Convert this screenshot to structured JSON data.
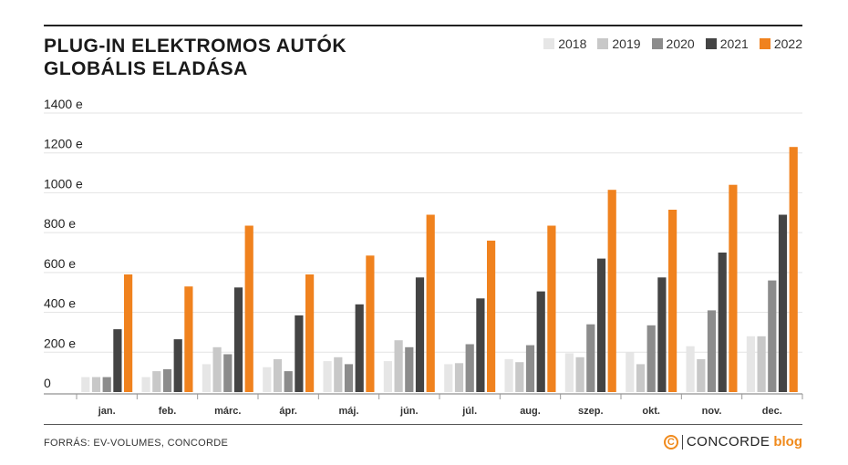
{
  "header": {
    "title_line1": "PLUG-IN ELEKTROMOS AUTÓK",
    "title_line2": "GLOBÁLIS ELADÁSA"
  },
  "footer": {
    "source": "FORRÁS: EV-VOLUMES, CONCORDE",
    "brand_icon": "C",
    "brand_name": "CONCORDE",
    "brand_blog": "blog"
  },
  "chart_data": {
    "type": "bar",
    "title": "PLUG-IN ELEKTROMOS AUTÓK GLOBÁLIS ELADÁSA",
    "xlabel": "",
    "ylabel": "",
    "ylim": [
      0,
      1400
    ],
    "yticks": [
      0,
      200,
      400,
      600,
      800,
      1000,
      1200,
      1400
    ],
    "ytick_labels": [
      "0",
      "200 e",
      "400 e",
      "600 e",
      "800 e",
      "1000 e",
      "1200 e",
      "1400 e"
    ],
    "grid": true,
    "legend_position": "top-right",
    "categories": [
      "jan.",
      "feb.",
      "márc.",
      "ápr.",
      "máj.",
      "jún.",
      "júl.",
      "aug.",
      "szep.",
      "okt.",
      "nov.",
      "dec."
    ],
    "series": [
      {
        "name": "2018",
        "color": "#e6e6e6",
        "values": [
          75,
          75,
          140,
          125,
          155,
          155,
          140,
          165,
          195,
          200,
          230,
          280
        ]
      },
      {
        "name": "2019",
        "color": "#c8c8c8",
        "values": [
          75,
          105,
          225,
          165,
          175,
          260,
          145,
          150,
          175,
          140,
          165,
          280
        ]
      },
      {
        "name": "2020",
        "color": "#8c8c8c",
        "values": [
          75,
          115,
          190,
          105,
          140,
          225,
          240,
          235,
          340,
          335,
          410,
          560
        ]
      },
      {
        "name": "2021",
        "color": "#444444",
        "values": [
          315,
          265,
          525,
          385,
          440,
          575,
          470,
          505,
          670,
          575,
          700,
          890
        ]
      },
      {
        "name": "2022",
        "color": "#f0821e",
        "values": [
          590,
          530,
          835,
          590,
          685,
          890,
          760,
          835,
          1015,
          915,
          1040,
          1230
        ]
      }
    ]
  }
}
